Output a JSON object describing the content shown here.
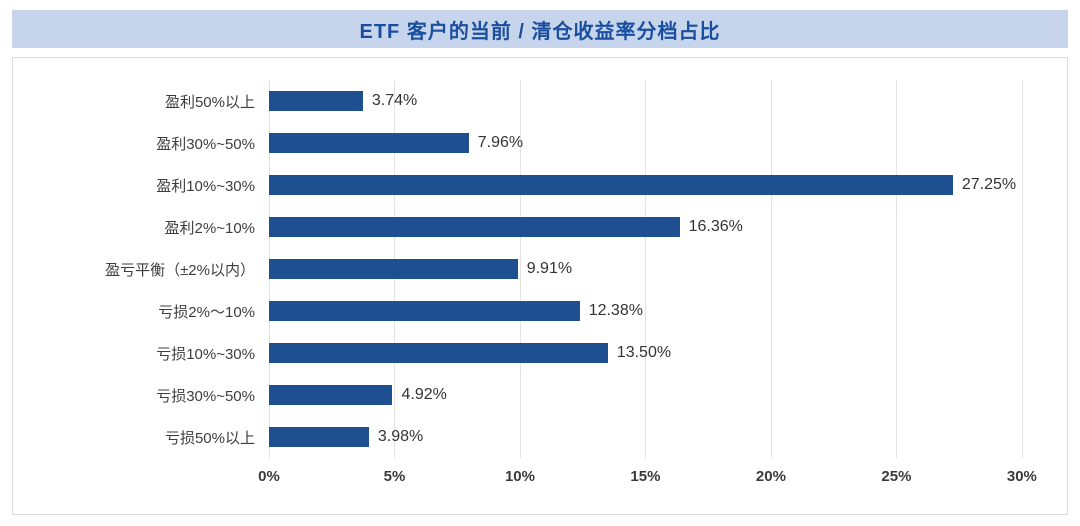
{
  "colors": {
    "bar": "#1d4f91",
    "banner_bg": "#c7d5ec",
    "title_text": "#1a4e9e",
    "gridline": "#e2e2e2"
  },
  "chart_data": {
    "type": "bar",
    "orientation": "horizontal",
    "title": "ETF 客户的当前 / 清仓收益率分档占比",
    "categories": [
      "盈利50%以上",
      "盈利30%~50%",
      "盈利10%~30%",
      "盈利2%~10%",
      "盈亏平衡（±2%以内）",
      "亏损2%～10%",
      "亏损10%~30%",
      "亏损30%~50%",
      "亏损50%以上"
    ],
    "values": [
      3.74,
      7.96,
      27.25,
      16.36,
      9.91,
      12.38,
      13.5,
      4.92,
      3.98
    ],
    "value_labels": [
      "3.74%",
      "7.96%",
      "27.25%",
      "16.36%",
      "9.91%",
      "12.38%",
      "13.50%",
      "4.92%",
      "3.98%"
    ],
    "x_ticks": [
      "0%",
      "5%",
      "10%",
      "15%",
      "20%",
      "25%",
      "30%"
    ],
    "x_tick_values": [
      0,
      5,
      10,
      15,
      20,
      25,
      30
    ],
    "xlim": [
      0,
      31
    ],
    "xlabel": "",
    "ylabel": "",
    "grid": "vertical",
    "legend": "none"
  }
}
